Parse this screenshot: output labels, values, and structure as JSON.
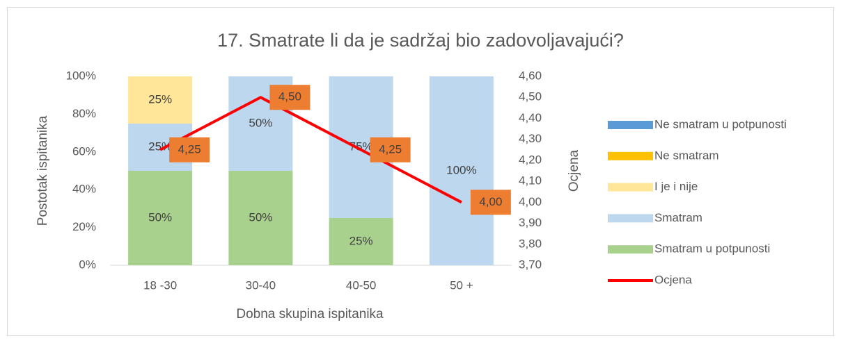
{
  "chart_data": {
    "type": "bar",
    "stacked": true,
    "title": "17. Smatrate li da je sadržaj bio zadovoljavajući?",
    "xlabel": "Dobna skupina ispitanika",
    "ylabel": "Postotak ispitanika",
    "y2label": "Ocjena",
    "categories": [
      "18 -30",
      "30-40",
      "40-50",
      "50 +"
    ],
    "series": [
      {
        "name": "Smatram u potpunosti",
        "color": "#a9d18e",
        "values": [
          50,
          50,
          25,
          0
        ],
        "value_labels": [
          "50%",
          "50%",
          "25%",
          null
        ]
      },
      {
        "name": "Smatram",
        "color": "#bdd7ee",
        "values": [
          25,
          50,
          75,
          100
        ],
        "value_labels": [
          "25%",
          "50%",
          "75%",
          "100%"
        ]
      },
      {
        "name": "I je i nije",
        "color": "#ffe699",
        "values": [
          25,
          0,
          0,
          0
        ],
        "value_labels": [
          "25%",
          null,
          null,
          null
        ]
      },
      {
        "name": "Ne smatram",
        "color": "#ffc000",
        "values": [
          0,
          0,
          0,
          0
        ]
      },
      {
        "name": "Ne smatram u potpunosti",
        "color": "#5b9bd5",
        "values": [
          0,
          0,
          0,
          0
        ]
      },
      {
        "name": "Ocjena",
        "type": "line",
        "axis": "y2",
        "color": "#ff0000",
        "label_color": "#ed7d31",
        "values": [
          4.25,
          4.5,
          4.25,
          4.0
        ],
        "value_labels": [
          "4,25",
          "4,50",
          "4,25",
          "4,00"
        ]
      }
    ],
    "ylim": [
      0,
      100
    ],
    "yticks": [
      {
        "value": 0,
        "label": "0%"
      },
      {
        "value": 20,
        "label": "20%"
      },
      {
        "value": 40,
        "label": "40%"
      },
      {
        "value": 60,
        "label": "60%"
      },
      {
        "value": 80,
        "label": "80%"
      },
      {
        "value": 100,
        "label": "100%"
      }
    ],
    "y2lim": [
      3.7,
      4.6
    ],
    "y2ticks": [
      {
        "value": 3.7,
        "label": "3,70"
      },
      {
        "value": 3.8,
        "label": "3,80"
      },
      {
        "value": 3.9,
        "label": "3,90"
      },
      {
        "value": 4.0,
        "label": "4,00"
      },
      {
        "value": 4.1,
        "label": "4,10"
      },
      {
        "value": 4.2,
        "label": "4,20"
      },
      {
        "value": 4.3,
        "label": "4,30"
      },
      {
        "value": 4.4,
        "label": "4,40"
      },
      {
        "value": 4.5,
        "label": "4,50"
      },
      {
        "value": 4.6,
        "label": "4,60"
      }
    ],
    "grid": false,
    "legend": "right"
  }
}
